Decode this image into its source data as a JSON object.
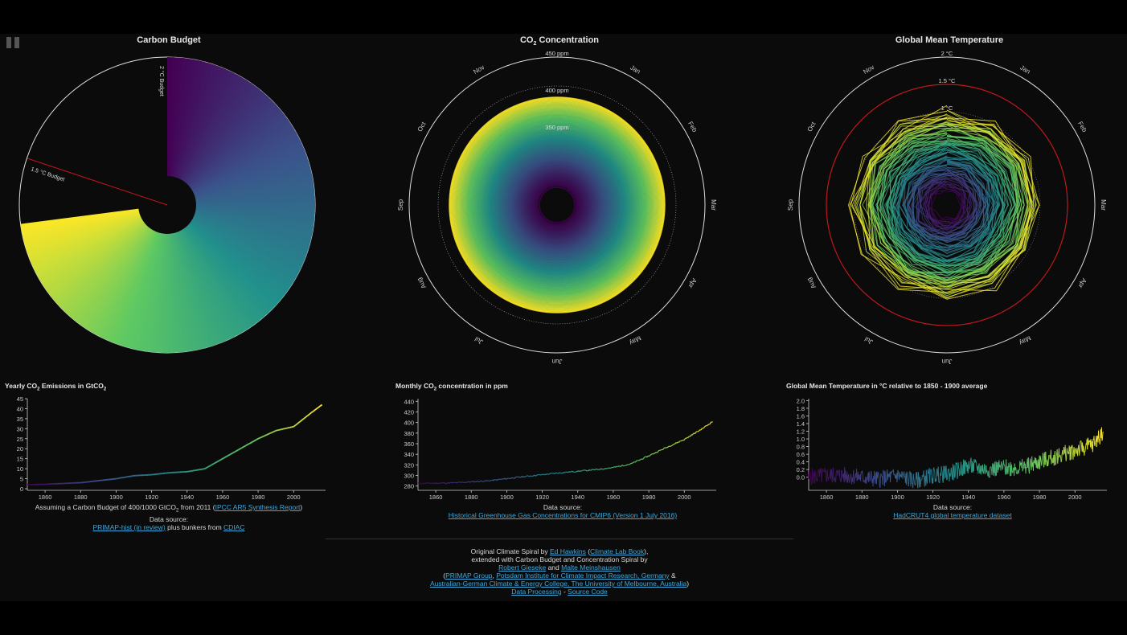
{
  "titles": {
    "budget": "Carbon Budget",
    "conc_pre": "CO",
    "conc_sub": "2",
    "conc_post": " Concentration",
    "temp": "Global Mean Temperature"
  },
  "spiral_labels": {
    "budget_2c": "2 °C Budget",
    "budget_15c": "1.5 °C Budget",
    "conc_rings": [
      "450 ppm",
      "400 ppm",
      "350 ppm"
    ],
    "temp_rings": [
      "2 °C",
      "1.5 °C",
      "1 °C"
    ],
    "months": [
      "Jan",
      "Feb",
      "Mar",
      "Apr",
      "May",
      "Jun",
      "Jul",
      "Aug",
      "Sep",
      "Oct",
      "Nov"
    ]
  },
  "colors": {
    "accent_link": "#3fa9dc",
    "limit_red": "#c0181b",
    "background": "#0b0b0b"
  },
  "chart_data": [
    {
      "type": "line",
      "title_pre": "Yearly CO",
      "title_sub": "2",
      "title_post": " Emissions in GtCO",
      "title_sub2": "2",
      "x": [
        1850,
        1860,
        1870,
        1880,
        1890,
        1900,
        1910,
        1920,
        1930,
        1940,
        1950,
        1960,
        1970,
        1980,
        1990,
        2000,
        2010,
        2016
      ],
      "values": [
        2,
        2.2,
        2.6,
        3,
        4,
        5,
        6.5,
        7,
        8,
        8.5,
        10,
        15,
        20,
        25,
        29,
        31,
        38,
        42
      ],
      "xticks": [
        1860,
        1880,
        1900,
        1920,
        1940,
        1960,
        1980,
        2000
      ],
      "yticks": [
        0,
        5,
        10,
        15,
        20,
        25,
        30,
        35,
        40,
        45
      ],
      "xlim": [
        1850,
        2018
      ],
      "ylim": [
        0,
        45
      ]
    },
    {
      "type": "line",
      "title_pre": "Monthly CO",
      "title_sub": "2",
      "title_post": " concentration in ppm",
      "x": [
        1850,
        1870,
        1890,
        1910,
        1930,
        1950,
        1960,
        1970,
        1980,
        1990,
        2000,
        2010,
        2016
      ],
      "values": [
        285,
        286,
        290,
        298,
        305,
        311,
        315,
        322,
        337,
        353,
        368,
        388,
        402
      ],
      "xticks": [
        1860,
        1880,
        1900,
        1920,
        1940,
        1960,
        1980,
        2000
      ],
      "yticks": [
        280,
        300,
        320,
        340,
        360,
        380,
        400,
        420,
        440
      ],
      "xlim": [
        1850,
        2018
      ],
      "ylim": [
        275,
        445
      ]
    },
    {
      "type": "line",
      "title": "Global Mean Temperature in °C relative to 1850 - 1900 average",
      "x": [
        1850,
        1860,
        1870,
        1880,
        1890,
        1900,
        1910,
        1920,
        1930,
        1940,
        1950,
        1960,
        1970,
        1980,
        1990,
        2000,
        2010,
        2016
      ],
      "values": [
        0.0,
        0.05,
        0.05,
        0.0,
        -0.05,
        0.05,
        -0.1,
        0.05,
        0.1,
        0.3,
        0.2,
        0.25,
        0.25,
        0.4,
        0.55,
        0.7,
        0.85,
        1.2
      ],
      "xticks": [
        1860,
        1880,
        1900,
        1920,
        1940,
        1960,
        1980,
        2000
      ],
      "yticks": [
        0.0,
        0.2,
        0.4,
        0.6,
        0.8,
        1.0,
        1.2,
        1.4,
        1.6,
        1.8,
        2.0
      ],
      "xlim": [
        1850,
        2018
      ],
      "ylim": [
        -0.3,
        2.05
      ]
    }
  ],
  "captions": {
    "emissions": {
      "line1_pre": "Assuming a Carbon Budget of 400/1000 GtCO",
      "line1_sub": "2",
      "line1_post": " from 2011 (",
      "line1_link": "IPCC AR5 Synthesis Report",
      "line1_end": ")",
      "line2": "Data source:",
      "line3_link1": "PRIMAP-hist (in review)",
      "line3_mid": " plus bunkers from ",
      "line3_link2": "CDIAC"
    },
    "concentration": {
      "line1": "Data source:",
      "link": "Historical Greenhouse Gas Concentrations for CMIP6 (Version 1 July 2016)"
    },
    "temperature": {
      "line1": "Data source:",
      "link": "HadCRUT4 global temperature dataset"
    }
  },
  "footer": {
    "l1_pre": "Original Climate Spiral by ",
    "l1_link1": "Ed Hawkins",
    "l1_mid": " (",
    "l1_link2": "Climate Lab Book",
    "l1_end": "),",
    "l2": "extended with Carbon Budget and Concentration Spiral by",
    "l3_link1": "Robert Gieseke",
    "l3_mid": " and ",
    "l3_link2": "Malte Meinshausen",
    "l4_pre": "(",
    "l4_link1": "PRIMAP Group",
    "l4_sep": ", ",
    "l4_link2": "Potsdam Institute for Climate Impact Research, Germany",
    "l4_end": " &",
    "l5_link": "Australian-German Climate & Energy College, The University of Melbourne, Australia",
    "l5_end": ")",
    "l6_link1": "Data Processing",
    "l6_sep": " - ",
    "l6_link2": "Source Code"
  }
}
